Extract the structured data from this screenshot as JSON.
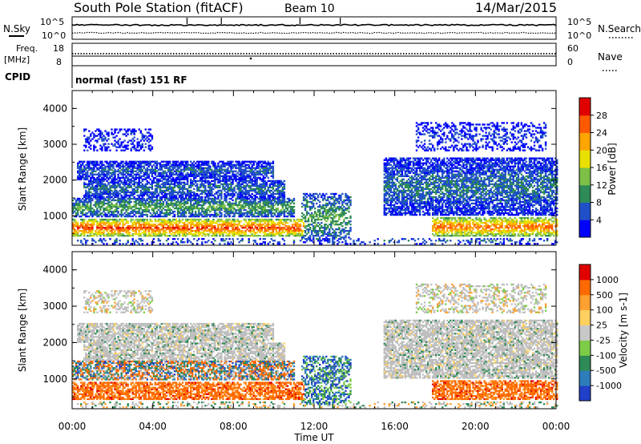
{
  "header": {
    "station": "South Pole Station (fitACF)",
    "beam": "Beam 10",
    "date": "14/Mar/2015"
  },
  "top_panels": {
    "nsky_label": "N.Sky",
    "nsearch_label": "N.Search",
    "noise_ticks_left": [
      "10^5",
      "10^0"
    ],
    "noise_ticks_right": [
      "10^5",
      "10^0"
    ],
    "freq_label_1": "Freq.",
    "freq_label_2": "[MHz]",
    "freq_ticks": [
      "18",
      "8"
    ],
    "nave_label": "Nave",
    "nave_ticks": [
      "60",
      "0"
    ],
    "cpid_label": "CPID",
    "cpid_text": "normal (fast) 151 RF"
  },
  "chart_data": [
    {
      "type": "heatmap",
      "title": "",
      "quantity": "Power",
      "xlabel": "",
      "ylabel": "Slant Range [km]",
      "colorbar_label": "Power [dB]",
      "colorbar_ticks": [
        "28",
        "24",
        "20",
        "16",
        "12",
        "8",
        "4"
      ],
      "colorscale": [
        "#0000ff",
        "#2050c8",
        "#2e8b57",
        "#7cc048",
        "#e8e000",
        "#ffa500",
        "#ff5a00",
        "#e00000"
      ],
      "ylim": [
        180,
        4500
      ],
      "y_ticks": [
        "4000",
        "3000",
        "2000",
        "1000"
      ],
      "x_range_ut": [
        "00:00",
        "24:00"
      ],
      "grid": false
    },
    {
      "type": "heatmap",
      "title": "",
      "quantity": "Velocity",
      "xlabel": "Time UT",
      "ylabel": "Slant Range [km]",
      "colorbar_label": "Velocity [m s-1]",
      "colorbar_ticks": [
        "1000",
        "500",
        "100",
        "25",
        "-25",
        "-100",
        "-500",
        "-1000"
      ],
      "colorscale": [
        "#2040c8",
        "#2e7dbb",
        "#2e8b57",
        "#7ccc48",
        "#c8c8c8",
        "#ffd060",
        "#ffa030",
        "#ff6a00",
        "#e00000"
      ],
      "ylim": [
        180,
        4500
      ],
      "y_ticks": [
        "4000",
        "3000",
        "2000",
        "1000"
      ],
      "x_ticks": [
        "00:00",
        "04:00",
        "08:00",
        "12:00",
        "16:00",
        "20:00",
        "00:00"
      ],
      "grid": false
    }
  ],
  "colors": {
    "frame": "#000000",
    "ground_scatter": "#bebebe"
  }
}
